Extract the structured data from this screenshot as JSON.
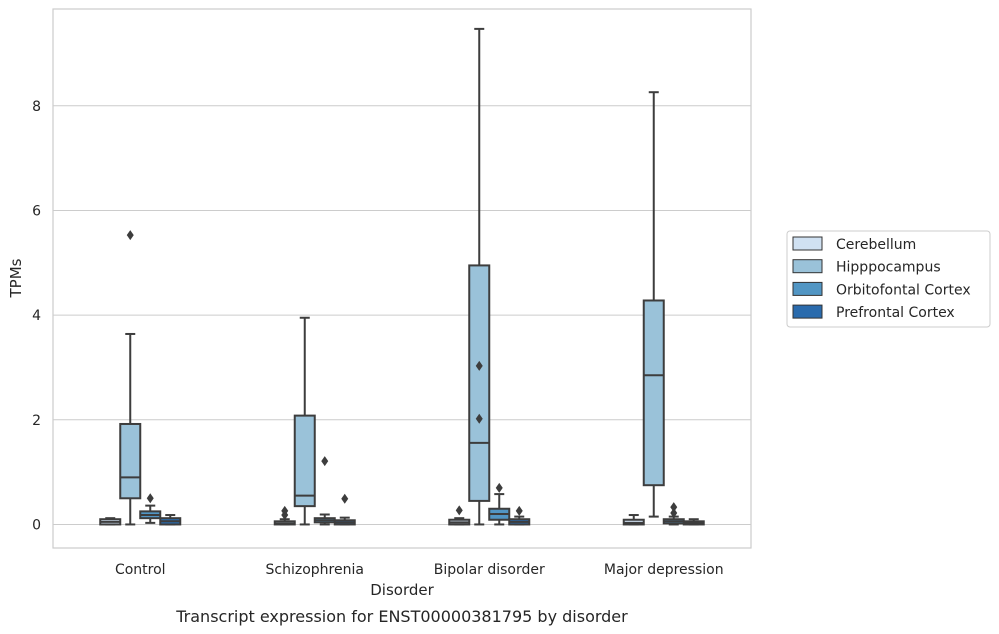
{
  "chart_data": {
    "type": "box",
    "caption": "Transcript expression for ENST00000381795 by disorder",
    "xlabel": "Disorder",
    "ylabel": "TPMs",
    "ylim": [
      -0.45,
      9.85
    ],
    "yticks": [
      0,
      2,
      4,
      6,
      8
    ],
    "grid": true,
    "legend_placement": "right",
    "categories": [
      "Control",
      "Schizophrenia",
      "Bipolar disorder",
      "Major depression"
    ],
    "series": [
      {
        "name": "Cerebellum",
        "color": "#d0e1f2",
        "boxes": [
          {
            "whisker_low": 0.0,
            "q1": 0.0,
            "median": 0.05,
            "q3": 0.1,
            "whisker_high": 0.12,
            "outliers": []
          },
          {
            "whisker_low": 0.0,
            "q1": 0.0,
            "median": 0.02,
            "q3": 0.06,
            "whisker_high": 0.1,
            "outliers": [
              0.18,
              0.26
            ]
          },
          {
            "whisker_low": 0.0,
            "q1": 0.0,
            "median": 0.04,
            "q3": 0.09,
            "whisker_high": 0.12,
            "outliers": [
              0.27
            ]
          },
          {
            "whisker_low": 0.0,
            "q1": 0.0,
            "median": 0.03,
            "q3": 0.09,
            "whisker_high": 0.18,
            "outliers": []
          }
        ]
      },
      {
        "name": "Hipppocampus",
        "color": "#9ac2d9",
        "boxes": [
          {
            "whisker_low": 0.0,
            "q1": 0.5,
            "median": 0.9,
            "q3": 1.92,
            "whisker_high": 3.64,
            "outliers": [
              5.53
            ]
          },
          {
            "whisker_low": 0.0,
            "q1": 0.35,
            "median": 0.55,
            "q3": 2.08,
            "whisker_high": 3.95,
            "outliers": []
          },
          {
            "whisker_low": 0.0,
            "q1": 0.45,
            "median": 1.56,
            "q3": 4.95,
            "whisker_high": 9.47,
            "outliers": [
              2.02,
              3.03
            ]
          },
          {
            "whisker_low": 0.15,
            "q1": 0.75,
            "median": 2.85,
            "q3": 4.28,
            "whisker_high": 8.26,
            "outliers": []
          }
        ]
      },
      {
        "name": "Orbitofontal Cortex",
        "color": "#5296c4",
        "boxes": [
          {
            "whisker_low": 0.03,
            "q1": 0.12,
            "median": 0.18,
            "q3": 0.25,
            "whisker_high": 0.36,
            "outliers": [
              0.5
            ]
          },
          {
            "whisker_low": 0.0,
            "q1": 0.04,
            "median": 0.08,
            "q3": 0.12,
            "whisker_high": 0.19,
            "outliers": [
              1.21
            ]
          },
          {
            "whisker_low": 0.0,
            "q1": 0.09,
            "median": 0.2,
            "q3": 0.3,
            "whisker_high": 0.58,
            "outliers": [
              0.7
            ]
          },
          {
            "whisker_low": 0.0,
            "q1": 0.02,
            "median": 0.06,
            "q3": 0.1,
            "whisker_high": 0.15,
            "outliers": [
              0.22,
              0.33
            ]
          }
        ]
      },
      {
        "name": "Prefrontal Cortex",
        "color": "#2a6bad",
        "boxes": [
          {
            "whisker_low": 0.0,
            "q1": 0.0,
            "median": 0.06,
            "q3": 0.12,
            "whisker_high": 0.18,
            "outliers": []
          },
          {
            "whisker_low": 0.0,
            "q1": 0.0,
            "median": 0.04,
            "q3": 0.08,
            "whisker_high": 0.13,
            "outliers": [
              0.49
            ]
          },
          {
            "whisker_low": 0.0,
            "q1": 0.0,
            "median": 0.05,
            "q3": 0.1,
            "whisker_high": 0.15,
            "outliers": [
              0.26
            ]
          },
          {
            "whisker_low": 0.0,
            "q1": 0.0,
            "median": 0.03,
            "q3": 0.06,
            "whisker_high": 0.1,
            "outliers": []
          }
        ]
      }
    ]
  }
}
